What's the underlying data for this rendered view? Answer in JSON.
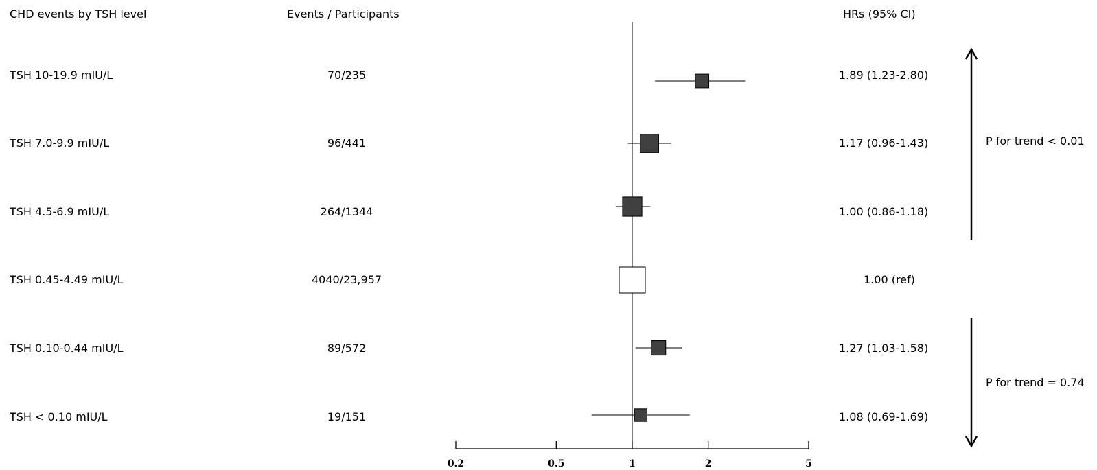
{
  "headers": {
    "label": "CHD events by TSH level",
    "events": "Events / Participants",
    "hr": "HRs (95% CI)"
  },
  "rows": [
    {
      "label": "TSH 10-19.9 mIU/L",
      "events": "70/235",
      "hr_text": "1.89 (1.23-2.80)"
    },
    {
      "label": "TSH 7.0-9.9 mIU/L",
      "events": "96/441",
      "hr_text": "1.17 (0.96-1.43)"
    },
    {
      "label": "TSH 4.5-6.9 mIU/L",
      "events": "264/1344",
      "hr_text": "1.00 (0.86-1.18)"
    },
    {
      "label": "TSH 0.45-4.49 mIU/L",
      "events": "4040/23,957",
      "hr_text": "1.00 (ref)"
    },
    {
      "label": "TSH 0.10-0.44 mIU/L",
      "events": "89/572",
      "hr_text": "1.27 (1.03-1.58)"
    },
    {
      "label": "TSH < 0.10 mIU/L",
      "events": "19/151",
      "hr_text": "1.08 (0.69-1.69)"
    }
  ],
  "trends": {
    "upper": "P for trend < 0.01",
    "lower": "P for trend = 0.74"
  },
  "chart_data": {
    "type": "forest",
    "x_scale": "log",
    "xlim": [
      0.2,
      5
    ],
    "x_ticks": [
      "0.2",
      "0.5",
      "1",
      "2",
      "5"
    ],
    "reference_line": 1,
    "categories": [
      "TSH 10-19.9 mIU/L",
      "TSH 7.0-9.9 mIU/L",
      "TSH 4.5-6.9 mIU/L",
      "TSH 0.45-4.49 mIU/L",
      "TSH 0.10-0.44 mIU/L",
      "TSH < 0.10 mIU/L"
    ],
    "hr": [
      1.89,
      1.17,
      1.0,
      1.0,
      1.27,
      1.08
    ],
    "ci_low": [
      1.23,
      0.96,
      0.86,
      null,
      1.03,
      0.69
    ],
    "ci_high": [
      2.8,
      1.43,
      1.18,
      null,
      1.58,
      1.69
    ],
    "relative_weight": [
      0.35,
      0.6,
      0.65,
      1.0,
      0.4,
      0.3
    ],
    "reference_row": 3,
    "colors": {
      "filled": "#404040",
      "reference": "#ffffff",
      "stroke": "#000000"
    }
  }
}
